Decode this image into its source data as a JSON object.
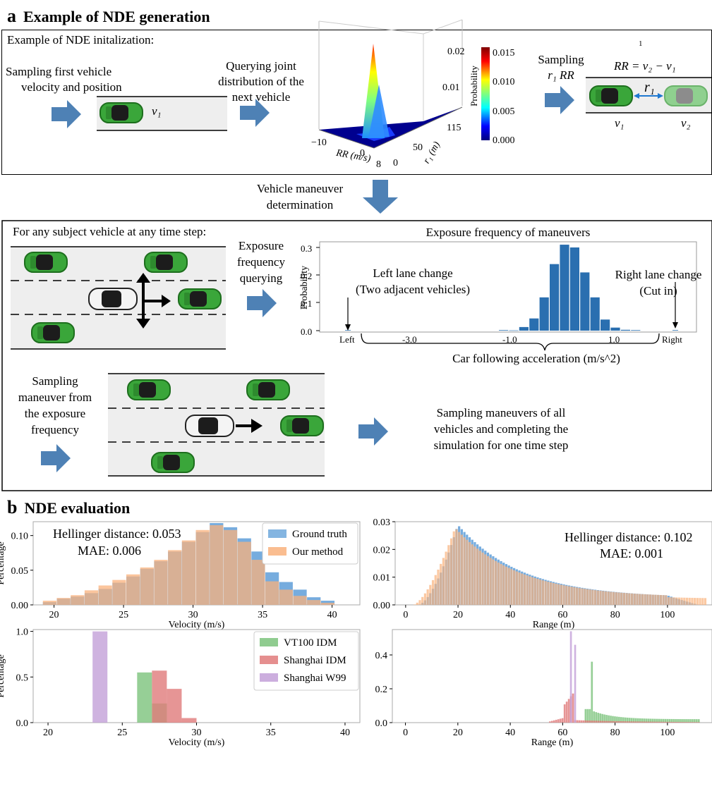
{
  "panel_a": {
    "letter": "a",
    "title": "Example of NDE generation",
    "init_title": "Example of NDE initalization:",
    "step1": [
      "Sampling first vehicle",
      "velocity and position"
    ],
    "step2": [
      "Querying joint",
      "distribution of the",
      "next vehicle"
    ],
    "step3": [
      "Sampling",
      "r₁ RR"
    ],
    "equation": "RR = v₂ − v₁",
    "eq_superscript": "1",
    "v1": "v₁",
    "v2": "v₂",
    "r1": "r₁",
    "plot3d": {
      "zlabel": "Probability",
      "ztick_top": "0.02",
      "ztick_mid": "0.01",
      "xlabel": "RR (m/s)",
      "xticks": [
        "−10",
        "0",
        "8"
      ],
      "ylabel": "r₁ (m)",
      "yticks": [
        "0",
        "50",
        "115"
      ],
      "colorbar_ticks": [
        "0.015",
        "0.010",
        "0.005",
        "0.000"
      ]
    },
    "maneuver_label": [
      "Vehicle maneuver",
      "determination"
    ],
    "subject_title": "For any subject vehicle at any time step:",
    "exposure_query": [
      "Exposure",
      "frequency",
      "querying"
    ],
    "sampling_maneuver": [
      "Sampling",
      "maneuver from",
      "the exposure",
      "frequency"
    ],
    "sampling_all": [
      "Sampling maneuvers of all",
      "vehicles and completing the",
      "simulation for one time step"
    ]
  },
  "exposure_chart": {
    "title": "Exposure frequency of maneuvers",
    "ylabel": "Probability",
    "yticks": [
      "0.0",
      "0.1",
      "0.2",
      "0.3"
    ],
    "xticks": [
      "Left",
      "-3.0",
      "-1.0",
      "1.0",
      "Right"
    ],
    "xlabel": "Car following acceleration (m/s^2)",
    "left_annot": [
      "Left lane change",
      "(Two adjacent vehicles)"
    ],
    "right_annot": [
      "Right lane change",
      "(Cut in)"
    ]
  },
  "panel_b": {
    "letter": "b",
    "title": "NDE evaluation",
    "ul_hellinger": "Hellinger distance: 0.053",
    "ul_mae": "MAE: 0.006",
    "ur_hellinger": "Hellinger distance: 0.102",
    "ur_mae": "MAE: 0.001"
  },
  "chart_data": [
    {
      "type": "bar",
      "title": "Exposure frequency of maneuvers",
      "ylabel": "Probability",
      "xlabel": "Car following acceleration (m/s^2)",
      "ylim": [
        0,
        0.32
      ],
      "values": [
        0.002,
        0.001,
        0.013,
        0.044,
        0.12,
        0.24,
        0.31,
        0.3,
        0.21,
        0.12,
        0.04,
        0.011,
        0.003,
        0.002
      ],
      "edge_values": {
        "Left": 0.002,
        "Right": 0.002
      }
    },
    {
      "type": "bar",
      "xlabel": "Velocity (m/s)",
      "ylabel": "Percentage",
      "xlim": [
        18.5,
        42
      ],
      "ylim": [
        0,
        0.12
      ],
      "xticks": [
        "20",
        "25",
        "30",
        "35",
        "40"
      ],
      "yticks": [
        "0.00",
        "0.05",
        "0.10"
      ],
      "bin_start": 19.2,
      "bin_width": 1.0,
      "series": [
        {
          "name": "Ground truth",
          "color": "#6fa8dc",
          "values": [
            0.004,
            0.009,
            0.012,
            0.017,
            0.023,
            0.032,
            0.041,
            0.052,
            0.063,
            0.077,
            0.091,
            0.105,
            0.118,
            0.112,
            0.096,
            0.077,
            0.047,
            0.033,
            0.022,
            0.011,
            0.006
          ]
        },
        {
          "name": "Our method",
          "color": "#f9b27c",
          "values": [
            0.006,
            0.01,
            0.014,
            0.021,
            0.028,
            0.036,
            0.044,
            0.054,
            0.065,
            0.079,
            0.093,
            0.108,
            0.115,
            0.108,
            0.091,
            0.065,
            0.034,
            0.022,
            0.013,
            0.007,
            0.003
          ]
        }
      ]
    },
    {
      "type": "bar",
      "xlabel": "Range (m)",
      "xlim": [
        -4,
        117
      ],
      "ylim": [
        0,
        0.03
      ],
      "xticks": [
        "0",
        "20",
        "40",
        "60",
        "80",
        "100"
      ],
      "yticks": [
        "0.00",
        "0.01",
        "0.02",
        "0.03"
      ],
      "series": [
        {
          "name": "Ground truth",
          "color": "#6fa8dc"
        },
        {
          "name": "Our method",
          "color": "#f9b27c"
        }
      ]
    },
    {
      "type": "bar",
      "xlabel": "Velocity (m/s)",
      "ylabel": "Percentage",
      "xlim": [
        19,
        41
      ],
      "ylim": [
        0,
        1.02
      ],
      "xticks": [
        "20",
        "25",
        "30",
        "35",
        "40"
      ],
      "yticks": [
        "0.0",
        "0.5",
        "1.0"
      ],
      "series": [
        {
          "name": "VT100 IDM",
          "color": "#7cc37c",
          "bins": [
            [
              26,
              27,
              0.55
            ],
            [
              27,
              28,
              0.21
            ]
          ]
        },
        {
          "name": "Shanghai IDM",
          "color": "#e07b7b",
          "bins": [
            [
              27,
              28,
              0.57
            ],
            [
              28,
              29,
              0.37
            ],
            [
              29,
              30,
              0.05
            ]
          ]
        },
        {
          "name": "Shanghai W99",
          "color": "#c3a0d8",
          "bins": [
            [
              23,
              24,
              1.0
            ]
          ]
        }
      ]
    },
    {
      "type": "bar",
      "xlabel": "Range (m)",
      "xlim": [
        -5,
        117
      ],
      "ylim": [
        0,
        0.55
      ],
      "xticks": [
        "0",
        "20",
        "40",
        "60",
        "80",
        "100"
      ],
      "yticks": [
        "0.0",
        "0.2",
        "0.4"
      ],
      "series": [
        {
          "name": "VT100 IDM",
          "color": "#7cc37c"
        },
        {
          "name": "Shanghai IDM",
          "color": "#e07b7b"
        },
        {
          "name": "Shanghai W99",
          "color": "#c3a0d8"
        }
      ]
    }
  ]
}
